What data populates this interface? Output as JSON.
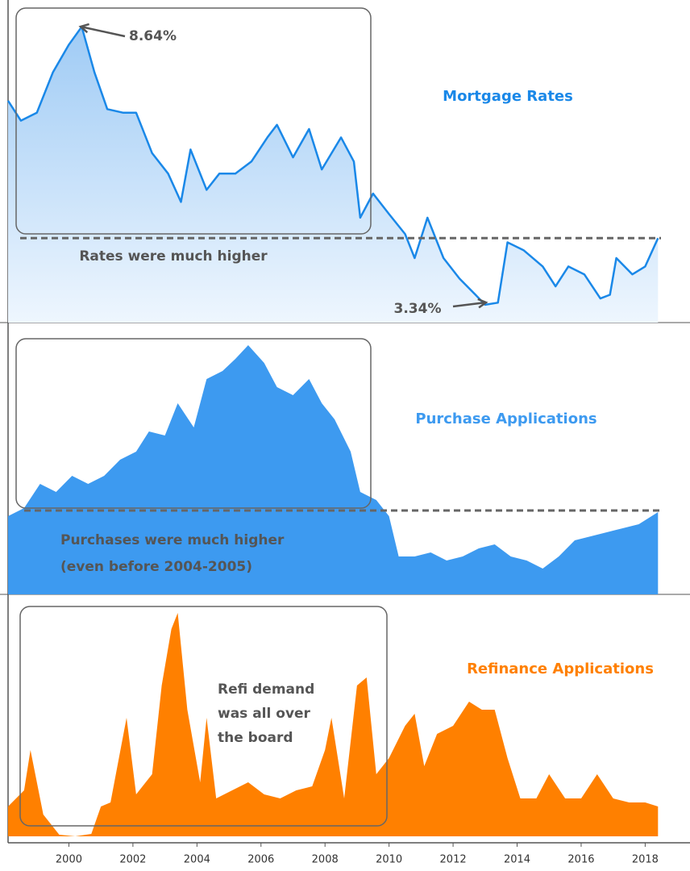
{
  "chart_data": [
    {
      "type": "line",
      "title": "Mortgage Rates",
      "color": "#1a88e8",
      "xlim": [
        1998.1,
        2019.4
      ],
      "ylim": [
        3,
        9.15
      ],
      "reference": 4.61,
      "annotations": [
        "8.64%",
        "Rates were much higher",
        "3.34%"
      ],
      "x": [
        1998.1,
        1998.5,
        1999.0,
        1999.5,
        2000.0,
        2000.4,
        2000.8,
        2001.2,
        2001.7,
        2002.1,
        2002.6,
        2003.1,
        2003.5,
        2003.8,
        2004.3,
        2004.7,
        2005.2,
        2005.7,
        2006.2,
        2006.5,
        2007.0,
        2007.5,
        2007.9,
        2008.5,
        2008.9,
        2009.1,
        2009.5,
        2010.0,
        2010.5,
        2010.8,
        2011.2,
        2011.7,
        2012.2,
        2012.7,
        2013.0,
        2013.4,
        2013.7,
        2014.2,
        2014.8,
        2015.2,
        2015.6,
        2016.1,
        2016.6,
        2016.9,
        2017.1,
        2017.6,
        2018.0,
        2018.4
      ],
      "values": [
        7.23,
        6.85,
        7.0,
        7.77,
        8.3,
        8.64,
        7.77,
        7.07,
        7.0,
        7.0,
        6.23,
        5.84,
        5.3,
        6.3,
        5.53,
        5.84,
        5.84,
        6.07,
        6.53,
        6.77,
        6.15,
        6.69,
        5.92,
        6.53,
        6.07,
        5.0,
        5.46,
        5.07,
        4.69,
        4.23,
        5.0,
        4.23,
        3.84,
        3.53,
        3.34,
        3.38,
        4.53,
        4.38,
        4.07,
        3.69,
        4.07,
        3.92,
        3.46,
        3.53,
        4.23,
        3.92,
        4.07,
        4.61
      ]
    },
    {
      "type": "area",
      "title": "Purchase Applications",
      "color": "#3d9af0",
      "xlim": [
        1998.1,
        2019.4
      ],
      "ylim": [
        0,
        337
      ],
      "reference": 104,
      "annotations": [
        "Purchases were much higher",
        "(even before  2004-2005)"
      ],
      "x": [
        1998.1,
        1998.6,
        1999.1,
        1999.6,
        2000.1,
        2000.6,
        2001.1,
        2001.6,
        2002.1,
        2002.5,
        2003.0,
        2003.4,
        2003.9,
        2004.3,
        2004.8,
        2005.2,
        2005.6,
        2006.1,
        2006.5,
        2007.0,
        2007.5,
        2007.9,
        2008.3,
        2008.8,
        2009.1,
        2009.6,
        2010.0,
        2010.3,
        2010.8,
        2011.3,
        2011.8,
        2012.3,
        2012.8,
        2013.3,
        2013.8,
        2014.3,
        2014.8,
        2015.3,
        2015.8,
        2016.3,
        2016.8,
        2017.3,
        2017.8,
        2018.4
      ],
      "values": [
        97,
        107,
        137,
        127,
        147,
        137,
        147,
        167,
        177,
        202,
        197,
        237,
        207,
        267,
        277,
        292,
        309,
        287,
        257,
        247,
        267,
        237,
        217,
        177,
        127,
        117,
        97,
        47,
        47,
        52,
        42,
        47,
        57,
        62,
        47,
        42,
        32,
        47,
        67,
        72,
        77,
        82,
        87,
        102
      ]
    },
    {
      "type": "area",
      "title": "Refinance Applications",
      "color": "#ff8000",
      "xlim": [
        1998.1,
        2019.4
      ],
      "ylim": [
        0,
        297
      ],
      "xticks": [
        2000,
        2002,
        2004,
        2006,
        2008,
        2010,
        2012,
        2014,
        2016,
        2018
      ],
      "annotations": [
        "Refi demand",
        "was all over",
        "the board"
      ],
      "x": [
        1998.1,
        1998.6,
        1998.8,
        1999.2,
        1999.7,
        2000.2,
        2000.7,
        2001.0,
        2001.3,
        2001.8,
        2002.1,
        2002.6,
        2002.9,
        2003.2,
        2003.4,
        2003.7,
        2004.1,
        2004.3,
        2004.6,
        2005.1,
        2005.6,
        2006.1,
        2006.6,
        2007.1,
        2007.6,
        2008.0,
        2008.2,
        2008.6,
        2009.0,
        2009.3,
        2009.6,
        2010.0,
        2010.5,
        2010.8,
        2011.1,
        2011.5,
        2012.0,
        2012.5,
        2012.9,
        2013.3,
        2013.7,
        2014.1,
        2014.6,
        2015.0,
        2015.5,
        2016.0,
        2016.5,
        2017.0,
        2017.5,
        2018.0,
        2018.4
      ],
      "values": [
        37,
        57,
        107,
        27,
        2,
        0,
        3,
        37,
        42,
        147,
        52,
        77,
        187,
        257,
        277,
        157,
        67,
        147,
        47,
        57,
        67,
        52,
        47,
        57,
        62,
        107,
        147,
        47,
        187,
        197,
        77,
        97,
        137,
        152,
        87,
        127,
        137,
        167,
        157,
        157,
        97,
        47,
        47,
        77,
        47,
        47,
        77,
        47,
        42,
        42,
        37
      ]
    }
  ]
}
